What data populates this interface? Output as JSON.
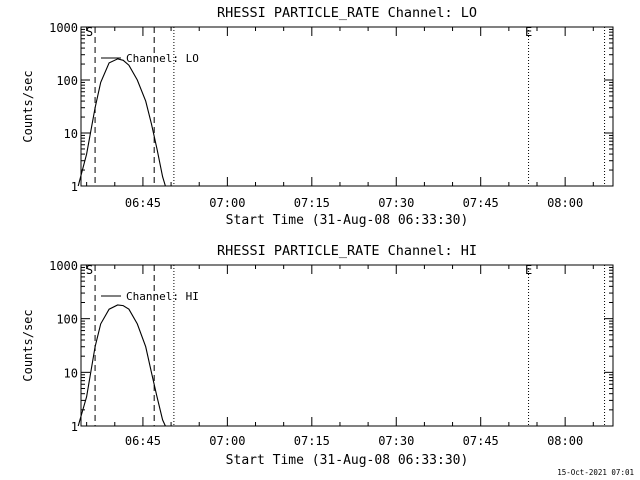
{
  "footer_timestamp": "15-Oct-2021 07:01",
  "chart_data": [
    {
      "type": "line",
      "title": "RHESSI PARTICLE_RATE Channel: LO",
      "xlabel": "Start Time (31-Aug-08 06:33:30)",
      "ylabel": "Counts/sec",
      "y_scale": "log",
      "ylim": [
        1,
        1000
      ],
      "y_ticks": [
        {
          "value": 1,
          "label": "1"
        },
        {
          "value": 10,
          "label": "10"
        },
        {
          "value": 100,
          "label": "100"
        },
        {
          "value": 1000,
          "label": "1000"
        }
      ],
      "x_ticks": [
        "06:45",
        "07:00",
        "07:15",
        "07:30",
        "07:45",
        "08:00"
      ],
      "legend": {
        "label": "Channel: LO",
        "placement": "top-left"
      },
      "markers": [
        {
          "label": "S",
          "time": "06:35:30"
        },
        {
          "label": "E",
          "time": "07:53:30"
        }
      ],
      "series": [
        {
          "name": "Channel: LO",
          "x": [
            "06:33:30",
            "06:35:00",
            "06:36:30",
            "06:37:30",
            "06:39:00",
            "06:40:30",
            "06:41:30",
            "06:42:30",
            "06:44:00",
            "06:45:30",
            "06:46:30",
            "06:47:30",
            "06:48:30",
            "06:49:00"
          ],
          "y": [
            1,
            4,
            30,
            90,
            210,
            250,
            235,
            190,
            100,
            40,
            15,
            5,
            1.5,
            1
          ]
        }
      ]
    },
    {
      "type": "line",
      "title": "RHESSI PARTICLE_RATE Channel: HI",
      "xlabel": "Start Time (31-Aug-08 06:33:30)",
      "ylabel": "Counts/sec",
      "y_scale": "log",
      "ylim": [
        1,
        1000
      ],
      "y_ticks": [
        {
          "value": 1,
          "label": "1"
        },
        {
          "value": 10,
          "label": "10"
        },
        {
          "value": 100,
          "label": "100"
        },
        {
          "value": 1000,
          "label": "1000"
        }
      ],
      "x_ticks": [
        "06:45",
        "07:00",
        "07:15",
        "07:30",
        "07:45",
        "08:00"
      ],
      "legend": {
        "label": "Channel: HI",
        "placement": "top-left"
      },
      "markers": [
        {
          "label": "S",
          "time": "06:35:30"
        },
        {
          "label": "E",
          "time": "07:53:30"
        }
      ],
      "series": [
        {
          "name": "Channel: HI",
          "x": [
            "06:33:30",
            "06:35:00",
            "06:36:30",
            "06:37:30",
            "06:39:00",
            "06:40:30",
            "06:41:30",
            "06:42:30",
            "06:44:00",
            "06:45:30",
            "06:46:30",
            "06:47:30",
            "06:48:30",
            "06:49:00"
          ],
          "y": [
            1,
            3.5,
            30,
            80,
            150,
            180,
            175,
            150,
            80,
            30,
            10,
            3.5,
            1.3,
            1
          ]
        }
      ]
    }
  ]
}
